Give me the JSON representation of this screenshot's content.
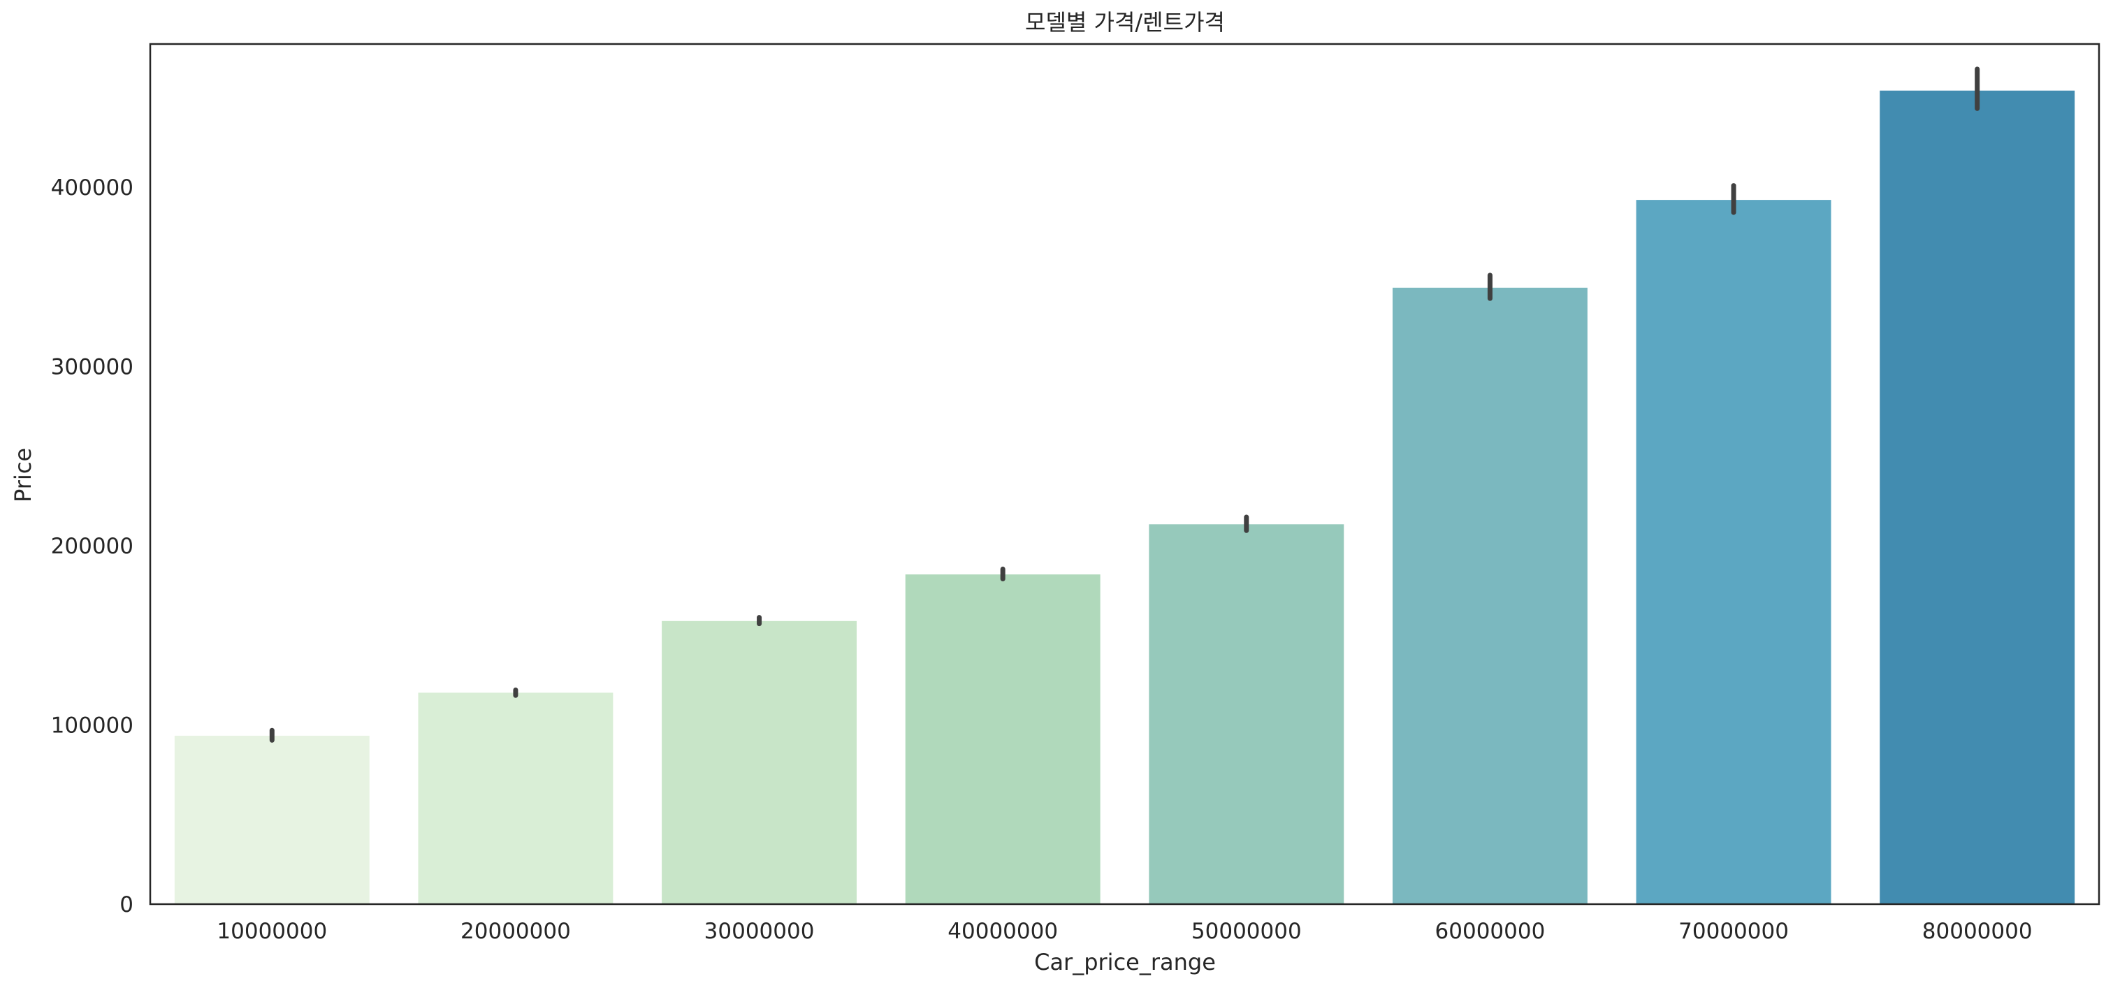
{
  "chart_data": {
    "type": "bar",
    "title": "모델별 가격/렌트가격",
    "xlabel": "Car_price_range",
    "ylabel": "Price",
    "categories": [
      "10000000",
      "20000000",
      "30000000",
      "40000000",
      "50000000",
      "60000000",
      "70000000",
      "80000000"
    ],
    "values": [
      94000,
      118000,
      158000,
      184000,
      212000,
      344000,
      393000,
      454000
    ],
    "error_bars": [
      [
        91500,
        97000
      ],
      [
        116500,
        119500
      ],
      [
        156500,
        160000
      ],
      [
        181500,
        187000
      ],
      [
        208500,
        216000
      ],
      [
        338000,
        351000
      ],
      [
        386000,
        401000
      ],
      [
        444000,
        466000
      ]
    ],
    "ylim": [
      0,
      480000
    ],
    "yticks": [
      0,
      100000,
      200000,
      300000,
      400000
    ],
    "ytick_labels": [
      "0",
      "100000",
      "200000",
      "300000",
      "400000"
    ],
    "colors": [
      "#e7f3e2",
      "#d9eed6",
      "#c8e5c8",
      "#b0d9bb",
      "#96c9bb",
      "#7bb8bf",
      "#5ca7c2",
      "#428cb0"
    ],
    "error_color": "#404040",
    "grid": false,
    "legend": "none"
  }
}
